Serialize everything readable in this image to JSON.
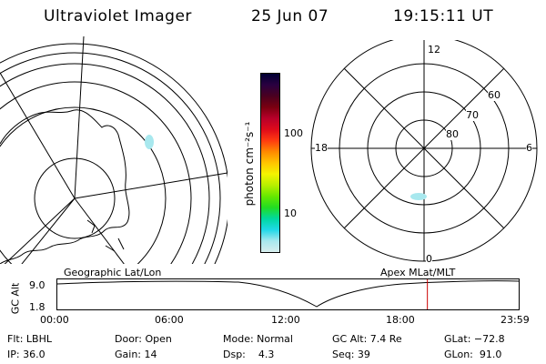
{
  "header": {
    "instrument": "Ultraviolet Imager",
    "date": "25 Jun 07",
    "time": "19:15:11 UT"
  },
  "colorbar": {
    "unit_label": "photon cm⁻²s⁻¹",
    "ticks": [
      "100",
      "10"
    ],
    "colors": [
      "#000033",
      "#2a0040",
      "#4a0020",
      "#7a0010",
      "#b8002a",
      "#e00a1a",
      "#ff3b10",
      "#ff8a00",
      "#ffc400",
      "#f4f400",
      "#b8f000",
      "#66e800",
      "#22dd22",
      "#00d8a0",
      "#20d8e8",
      "#a8e8ee",
      "#d8eeee"
    ]
  },
  "geographic_map": {
    "label": "Geographic Lat/Lon"
  },
  "polar_plot": {
    "label": "Apex MLat/MLT",
    "mlt_labels": {
      "top": "12",
      "left": "18",
      "right": "6",
      "bottom": "0"
    },
    "lat_labels": [
      "60",
      "70",
      "80"
    ]
  },
  "altitude_plot": {
    "ylabel": "GC Alt",
    "yticks": [
      "9.0",
      "1.8"
    ],
    "xticks": [
      "00:00",
      "06:00",
      "12:00",
      "18:00",
      "23:59"
    ],
    "marker_time_hours": 19.25,
    "marker_color": "#cc0000"
  },
  "status": {
    "filter": "Flt: LBHL",
    "door": "Door: Open",
    "mode": "Mode: Normal",
    "gc_alt": "GC Alt: 7.4 Re",
    "glat": "GLat: −72.8",
    "ip": "IP: 36.0",
    "gain": "Gain: 14",
    "dsp": "Dsp:    4.3",
    "seq": "Seq: 39",
    "glon": "GLon:  91.0"
  }
}
